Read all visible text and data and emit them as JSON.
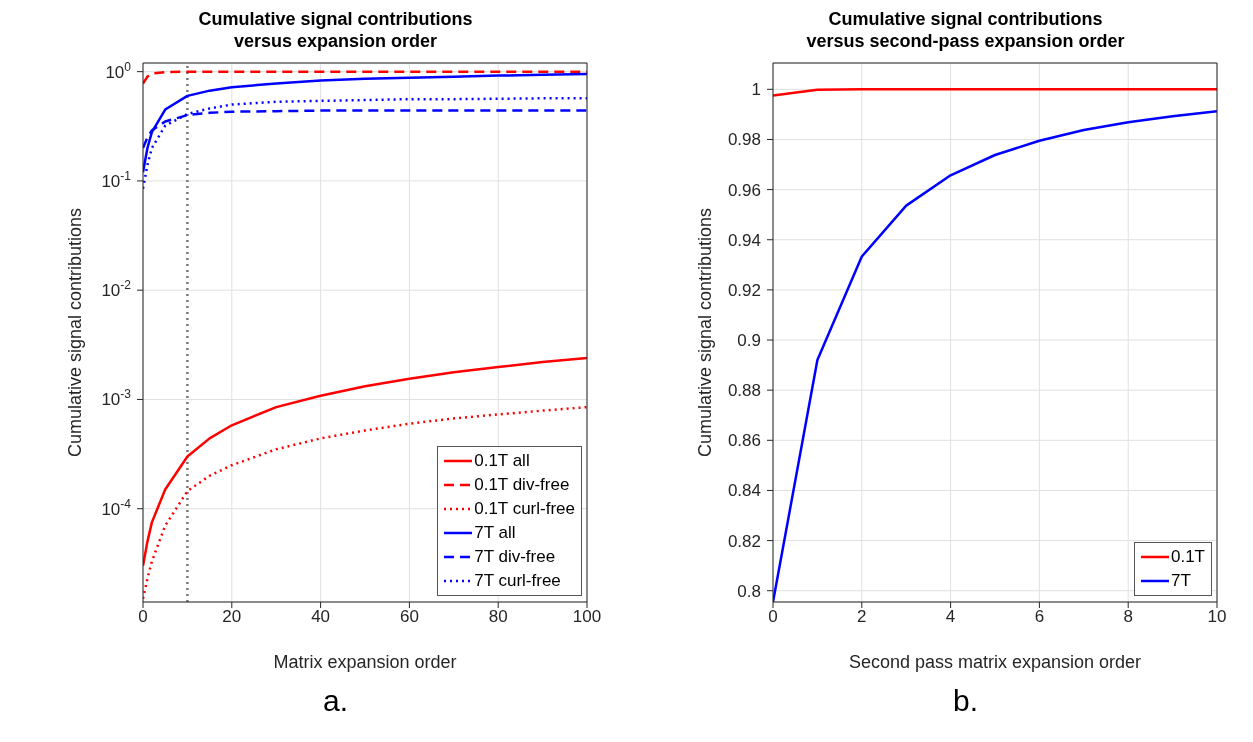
{
  "chart_data": [
    {
      "type": "line",
      "title": "Cumulative signal contributions\nversus expansion order",
      "xlabel": "Matrix expansion order",
      "ylabel": "Cumulative signal contributions",
      "annotations": [
        "a."
      ],
      "x": [
        0,
        1,
        2,
        5,
        10,
        15,
        20,
        30,
        40,
        50,
        60,
        70,
        80,
        90,
        100
      ],
      "series": [
        {
          "name": "0.1T all",
          "color": "#ff0000",
          "line_style": "solid",
          "values": [
            3e-05,
            5e-05,
            7.5e-05,
            0.00015,
            0.0003,
            0.00044,
            0.00058,
            0.00085,
            0.00108,
            0.00132,
            0.00155,
            0.00177,
            0.00198,
            0.0022,
            0.0024
          ]
        },
        {
          "name": "0.1T div-free",
          "color": "#ff0000",
          "line_style": "dashed",
          "values": [
            0.78,
            0.9,
            0.96,
            0.99,
            1,
            1,
            1,
            1,
            1,
            1,
            1,
            1,
            1,
            1,
            1
          ]
        },
        {
          "name": "0.1T curl-free",
          "color": "#ff0000",
          "line_style": "dotted",
          "values": [
            1.5e-05,
            2.3e-05,
            3.3e-05,
            7e-05,
            0.000145,
            0.0002,
            0.00025,
            0.00035,
            0.00044,
            0.00052,
            0.0006,
            0.00067,
            0.00073,
            0.00079,
            0.00085
          ]
        },
        {
          "name": "7T all",
          "color": "#0000ff",
          "line_style": "solid",
          "values": [
            0.12,
            0.2,
            0.28,
            0.45,
            0.6,
            0.67,
            0.72,
            0.78,
            0.83,
            0.86,
            0.88,
            0.9,
            0.92,
            0.935,
            0.95
          ]
        },
        {
          "name": "7T div-free",
          "color": "#0000ff",
          "line_style": "dashed",
          "values": [
            0.2,
            0.25,
            0.29,
            0.35,
            0.4,
            0.42,
            0.43,
            0.435,
            0.44,
            0.44,
            0.44,
            0.44,
            0.44,
            0.44,
            0.44
          ]
        },
        {
          "name": "7T curl-free",
          "color": "#0000ff",
          "line_style": "dotted",
          "values": [
            0.085,
            0.14,
            0.2,
            0.32,
            0.41,
            0.46,
            0.5,
            0.53,
            0.54,
            0.55,
            0.56,
            0.56,
            0.565,
            0.57,
            0.57
          ]
        }
      ],
      "xlim": [
        0,
        100
      ],
      "xticks": [
        0,
        20,
        40,
        60,
        80,
        100
      ],
      "ylim": [
        1.4e-05,
        1.2
      ],
      "log": true,
      "yticks": [
        {
          "value": 0.0001,
          "label": "10$^{-4}$"
        },
        {
          "value": 0.001,
          "label": "10$^{-3}$"
        },
        {
          "value": 0.01,
          "label": "10$^{-2}$"
        },
        {
          "value": 0.1,
          "label": "10$^{-1}$"
        },
        {
          "value": 1,
          "label": "10$^{0}$"
        }
      ],
      "ref_lines": [
        {
          "axis": "x",
          "value": 10,
          "color": "#777777",
          "line_style": "dotted"
        }
      ],
      "grid": true,
      "legend": "bottom right"
    },
    {
      "type": "line",
      "title": "Cumulative signal contributions\nversus second-pass expansion order",
      "xlabel": "Second pass matrix expansion order",
      "ylabel": "Cumulative signal contributions",
      "annotations": [
        "b."
      ],
      "x": [
        0,
        1,
        2,
        3,
        4,
        5,
        6,
        7,
        8,
        9,
        10
      ],
      "series": [
        {
          "name": "0.1T",
          "color": "#ff0000",
          "line_style": "solid",
          "values": [
            0.9975,
            0.9998,
            1,
            1,
            1,
            1,
            1,
            1,
            1,
            1,
            1
          ]
        },
        {
          "name": "7T",
          "color": "#0000ff",
          "line_style": "solid",
          "values": [
            0.7955,
            0.892,
            0.9333,
            0.9536,
            0.9657,
            0.9738,
            0.9795,
            0.9838,
            0.9869,
            0.9893,
            0.9913
          ]
        }
      ],
      "xlim": [
        0,
        10
      ],
      "xticks": [
        0,
        2,
        4,
        6,
        8,
        10
      ],
      "ylim": [
        0.7955,
        1.0105
      ],
      "yticks": [
        0.8,
        0.82,
        0.84,
        0.86,
        0.88,
        0.9,
        0.92,
        0.94,
        0.96,
        0.98,
        1
      ],
      "grid": true,
      "legend": "bottom right"
    }
  ]
}
